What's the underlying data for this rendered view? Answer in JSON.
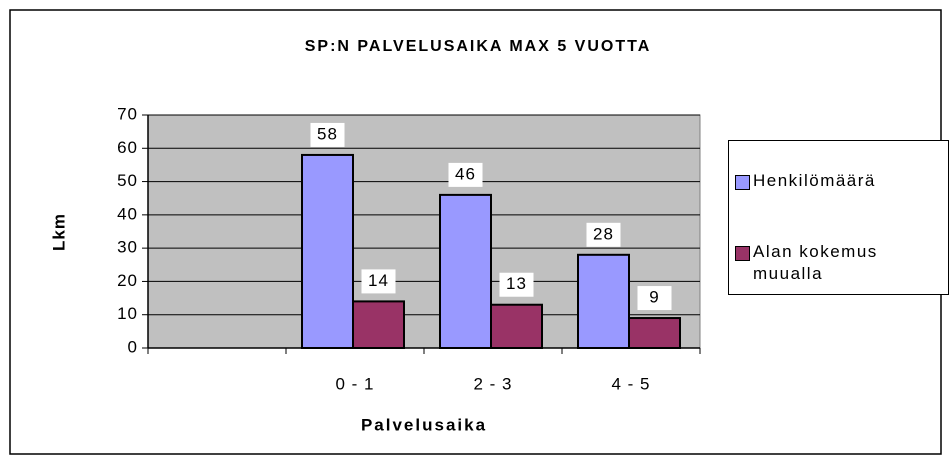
{
  "chart_data": {
    "type": "bar",
    "title": "SP:N PALVELUSAIKA MAX 5 VUOTTA",
    "x_label": "Palvelusaika",
    "y_label": "Lkm",
    "categories": [
      null,
      "0 - 1",
      "2 - 3",
      "4 - 5"
    ],
    "series": [
      {
        "name": "Henkilömäärä",
        "color": "#9999ff",
        "values": [
          null,
          58,
          46,
          28
        ]
      },
      {
        "name": "Alan kokemus muualla",
        "color": "#993366",
        "values": [
          null,
          14,
          13,
          9
        ]
      }
    ],
    "ylim": [
      0,
      70
    ],
    "yticks": [
      0,
      10,
      20,
      30,
      40,
      50,
      60,
      70
    ],
    "grid": true,
    "legend": "right"
  }
}
